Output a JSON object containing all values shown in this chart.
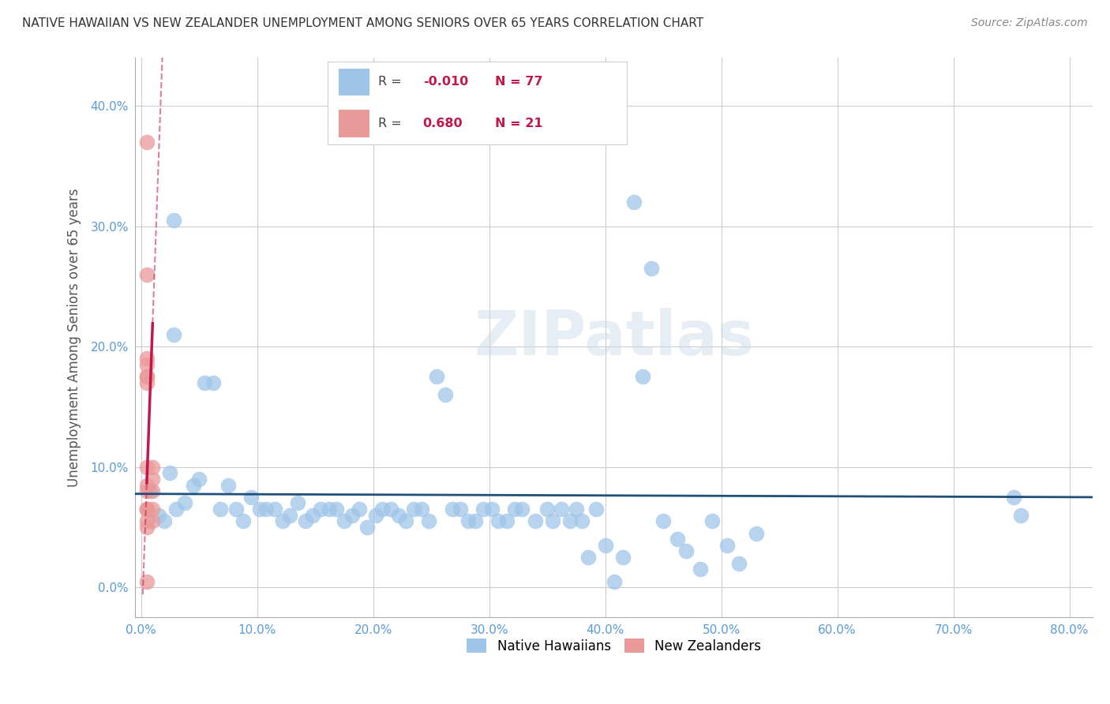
{
  "title": "NATIVE HAWAIIAN VS NEW ZEALANDER UNEMPLOYMENT AMONG SENIORS OVER 65 YEARS CORRELATION CHART",
  "source": "Source: ZipAtlas.com",
  "ylabel": "Unemployment Among Seniors over 65 years",
  "xlim": [
    -0.005,
    0.82
  ],
  "ylim": [
    -0.025,
    0.44
  ],
  "xticks": [
    0.0,
    0.1,
    0.2,
    0.3,
    0.4,
    0.5,
    0.6,
    0.7,
    0.8
  ],
  "xticklabels": [
    "0.0%",
    "10.0%",
    "20.0%",
    "30.0%",
    "40.0%",
    "50.0%",
    "60.0%",
    "70.0%",
    "80.0%"
  ],
  "yticks": [
    0.0,
    0.1,
    0.2,
    0.3,
    0.4
  ],
  "yticklabels": [
    "0.0%",
    "10.0%",
    "20.0%",
    "30.0%",
    "40.0%"
  ],
  "color_blue": "#9fc5e8",
  "color_pink": "#ea9999",
  "color_line_blue": "#1f4e79",
  "color_line_pink": "#c0184a",
  "watermark": "ZIPatlas",
  "nh_x": [
    0.028,
    0.028,
    0.008,
    0.015,
    0.02,
    0.025,
    0.03,
    0.038,
    0.045,
    0.05,
    0.055,
    0.062,
    0.068,
    0.075,
    0.082,
    0.088,
    0.095,
    0.102,
    0.108,
    0.115,
    0.122,
    0.128,
    0.135,
    0.142,
    0.148,
    0.155,
    0.162,
    0.168,
    0.175,
    0.182,
    0.188,
    0.195,
    0.202,
    0.208,
    0.215,
    0.222,
    0.228,
    0.235,
    0.242,
    0.248,
    0.255,
    0.262,
    0.268,
    0.275,
    0.282,
    0.288,
    0.295,
    0.302,
    0.308,
    0.315,
    0.322,
    0.328,
    0.34,
    0.35,
    0.355,
    0.362,
    0.37,
    0.375,
    0.38,
    0.385,
    0.392,
    0.4,
    0.408,
    0.415,
    0.425,
    0.432,
    0.44,
    0.45,
    0.462,
    0.47,
    0.482,
    0.492,
    0.505,
    0.515,
    0.53,
    0.752,
    0.758
  ],
  "nh_y": [
    0.305,
    0.21,
    0.08,
    0.06,
    0.055,
    0.095,
    0.065,
    0.07,
    0.085,
    0.09,
    0.17,
    0.17,
    0.065,
    0.085,
    0.065,
    0.055,
    0.075,
    0.065,
    0.065,
    0.065,
    0.055,
    0.06,
    0.07,
    0.055,
    0.06,
    0.065,
    0.065,
    0.065,
    0.055,
    0.06,
    0.065,
    0.05,
    0.06,
    0.065,
    0.065,
    0.06,
    0.055,
    0.065,
    0.065,
    0.055,
    0.175,
    0.16,
    0.065,
    0.065,
    0.055,
    0.055,
    0.065,
    0.065,
    0.055,
    0.055,
    0.065,
    0.065,
    0.055,
    0.065,
    0.055,
    0.065,
    0.055,
    0.065,
    0.055,
    0.025,
    0.065,
    0.035,
    0.005,
    0.025,
    0.32,
    0.175,
    0.265,
    0.055,
    0.04,
    0.03,
    0.015,
    0.055,
    0.035,
    0.02,
    0.045,
    0.075,
    0.06
  ],
  "nz_x": [
    0.005,
    0.005,
    0.005,
    0.005,
    0.005,
    0.005,
    0.005,
    0.005,
    0.005,
    0.005,
    0.005,
    0.005,
    0.005,
    0.005,
    0.005,
    0.01,
    0.01,
    0.01,
    0.01,
    0.01,
    0.005
  ],
  "nz_y": [
    0.37,
    0.26,
    0.19,
    0.185,
    0.175,
    0.175,
    0.17,
    0.1,
    0.085,
    0.08,
    0.065,
    0.065,
    0.065,
    0.055,
    0.05,
    0.1,
    0.09,
    0.08,
    0.065,
    0.055,
    0.005
  ]
}
